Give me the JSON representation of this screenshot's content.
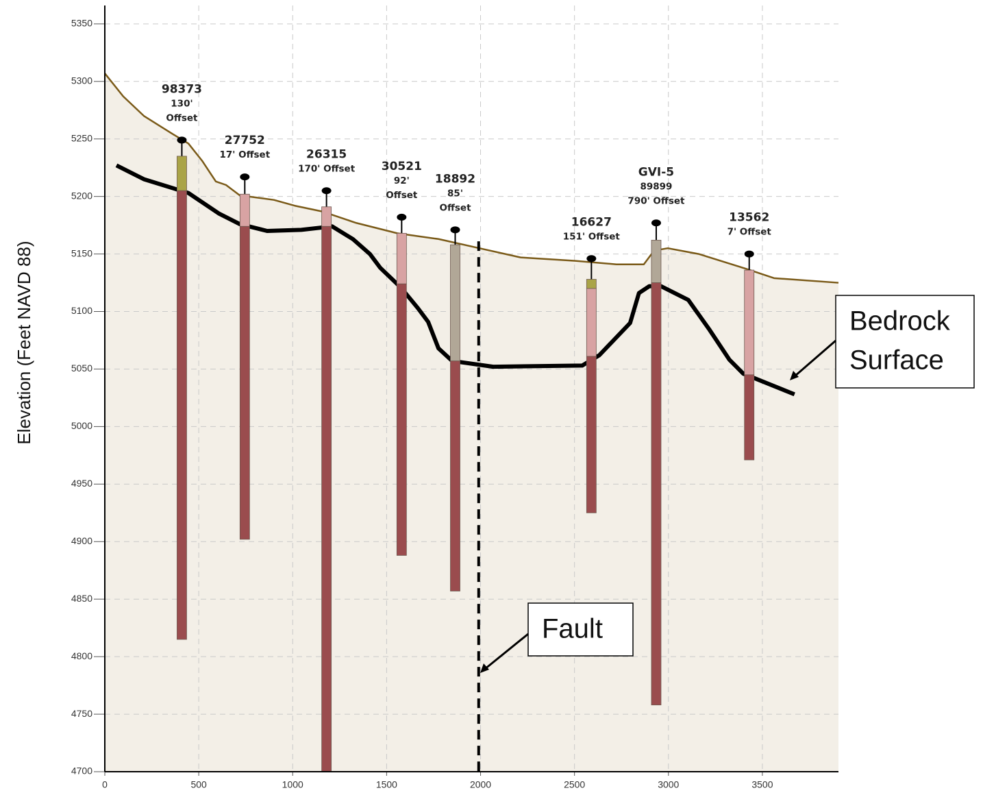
{
  "chart_data": {
    "type": "cross-section",
    "ylabel": "Elevation (Feet NAVD 88)",
    "xlim": [
      0,
      3905
    ],
    "ylim": [
      4700,
      5366
    ],
    "xticks": [
      0,
      500,
      1000,
      1500,
      2000,
      2500,
      3000,
      3500
    ],
    "yticks": [
      4700,
      4750,
      4800,
      4850,
      4900,
      4950,
      5000,
      5050,
      5100,
      5150,
      5200,
      5250,
      5300,
      5350
    ],
    "grid": true,
    "fill_color": "#f3efe7",
    "series": [
      {
        "color": "#7a5a18",
        "x": [
          0,
          98,
          208,
          354,
          445,
          518,
          591,
          645,
          718,
          900,
          1010,
          1156,
          1338,
          1557,
          1776,
          1994,
          2213,
          2505,
          2723,
          2869,
          2924,
          2997,
          3161,
          3416,
          3562,
          3905
        ],
        "values": [
          5307,
          5287,
          5270,
          5255,
          5246,
          5231,
          5213,
          5210,
          5201,
          5197,
          5192,
          5187,
          5177,
          5168,
          5163,
          5155,
          5147,
          5144,
          5141,
          5141,
          5153,
          5155,
          5150,
          5137,
          5129,
          5125
        ]
      },
      {
        "color": "#000000",
        "x": [
          62,
          208,
          445,
          609,
          718,
          864,
          1046,
          1210,
          1320,
          1411,
          1466,
          1575,
          1666,
          1721,
          1776,
          1849,
          2067,
          2541,
          2632,
          2796,
          2843,
          2898,
          2960,
          3106,
          3215,
          3325,
          3398,
          3671
        ],
        "values": [
          5227,
          5215,
          5203,
          5185,
          5176,
          5170,
          5171,
          5174,
          5163,
          5150,
          5138,
          5121,
          5103,
          5091,
          5068,
          5057,
          5052,
          5053,
          5062,
          5090,
          5116,
          5122,
          5122,
          5110,
          5085,
          5058,
          5046,
          5028
        ]
      }
    ],
    "wells": [
      {
        "label": [
          "98373",
          "130'",
          "Offset"
        ],
        "x": 410,
        "collar": 5249,
        "segments": [
          {
            "top": 5235,
            "bottom": 5205,
            "color": "#aaa447"
          },
          {
            "top": 5205,
            "bottom": 4815,
            "color": "#9a4c4e"
          }
        ]
      },
      {
        "label": [
          "27752",
          "17' Offset"
        ],
        "x": 745,
        "collar": 5217,
        "segments": [
          {
            "top": 5202,
            "bottom": 5174,
            "color": "#d8a3a3"
          },
          {
            "top": 5174,
            "bottom": 4902,
            "color": "#9a4c4e"
          }
        ]
      },
      {
        "label": [
          "26315",
          "170' Offset"
        ],
        "x": 1180,
        "collar": 5205,
        "segments": [
          {
            "top": 5191,
            "bottom": 5174,
            "color": "#d8a3a3"
          },
          {
            "top": 5174,
            "bottom": 4700,
            "color": "#9a4c4e"
          }
        ]
      },
      {
        "label": [
          "30521",
          "92'",
          "Offset"
        ],
        "x": 1580,
        "collar": 5182,
        "segments": [
          {
            "top": 5168,
            "bottom": 5124,
            "color": "#d8a3a3"
          },
          {
            "top": 5124,
            "bottom": 4888,
            "color": "#9a4c4e"
          }
        ]
      },
      {
        "label": [
          "18892",
          "85'",
          "Offset"
        ],
        "x": 1865,
        "collar": 5171,
        "segments": [
          {
            "top": 5158,
            "bottom": 5057,
            "color": "#b1a797"
          },
          {
            "top": 5057,
            "bottom": 4857,
            "color": "#9a4c4e"
          }
        ]
      },
      {
        "label": [
          "16627",
          "151' Offset"
        ],
        "x": 2590,
        "collar": 5146,
        "segments": [
          {
            "top": 5128,
            "bottom": 5120,
            "color": "#aaa447"
          },
          {
            "top": 5120,
            "bottom": 5061,
            "color": "#d8a3a3"
          },
          {
            "top": 5061,
            "bottom": 4925,
            "color": "#9a4c4e"
          }
        ]
      },
      {
        "label": [
          "GVI-5",
          "89899",
          "790' Offset"
        ],
        "x": 2935,
        "collar": 5177,
        "segments": [
          {
            "top": 5162,
            "bottom": 5125,
            "color": "#b1a797"
          },
          {
            "top": 5125,
            "bottom": 4758,
            "color": "#9a4c4e"
          }
        ]
      },
      {
        "label": [
          "13562",
          "7' Offset"
        ],
        "x": 3430,
        "collar": 5150,
        "segments": [
          {
            "top": 5136,
            "bottom": 5045,
            "color": "#d8a3a3"
          },
          {
            "top": 5045,
            "bottom": 4971,
            "color": "#9a4c4e"
          }
        ]
      }
    ],
    "fault": {
      "x": 1990,
      "top": 5161
    },
    "annotations": [
      {
        "text": [
          "Bedrock",
          "Surface"
        ]
      },
      {
        "text": [
          "Fault"
        ]
      }
    ]
  }
}
